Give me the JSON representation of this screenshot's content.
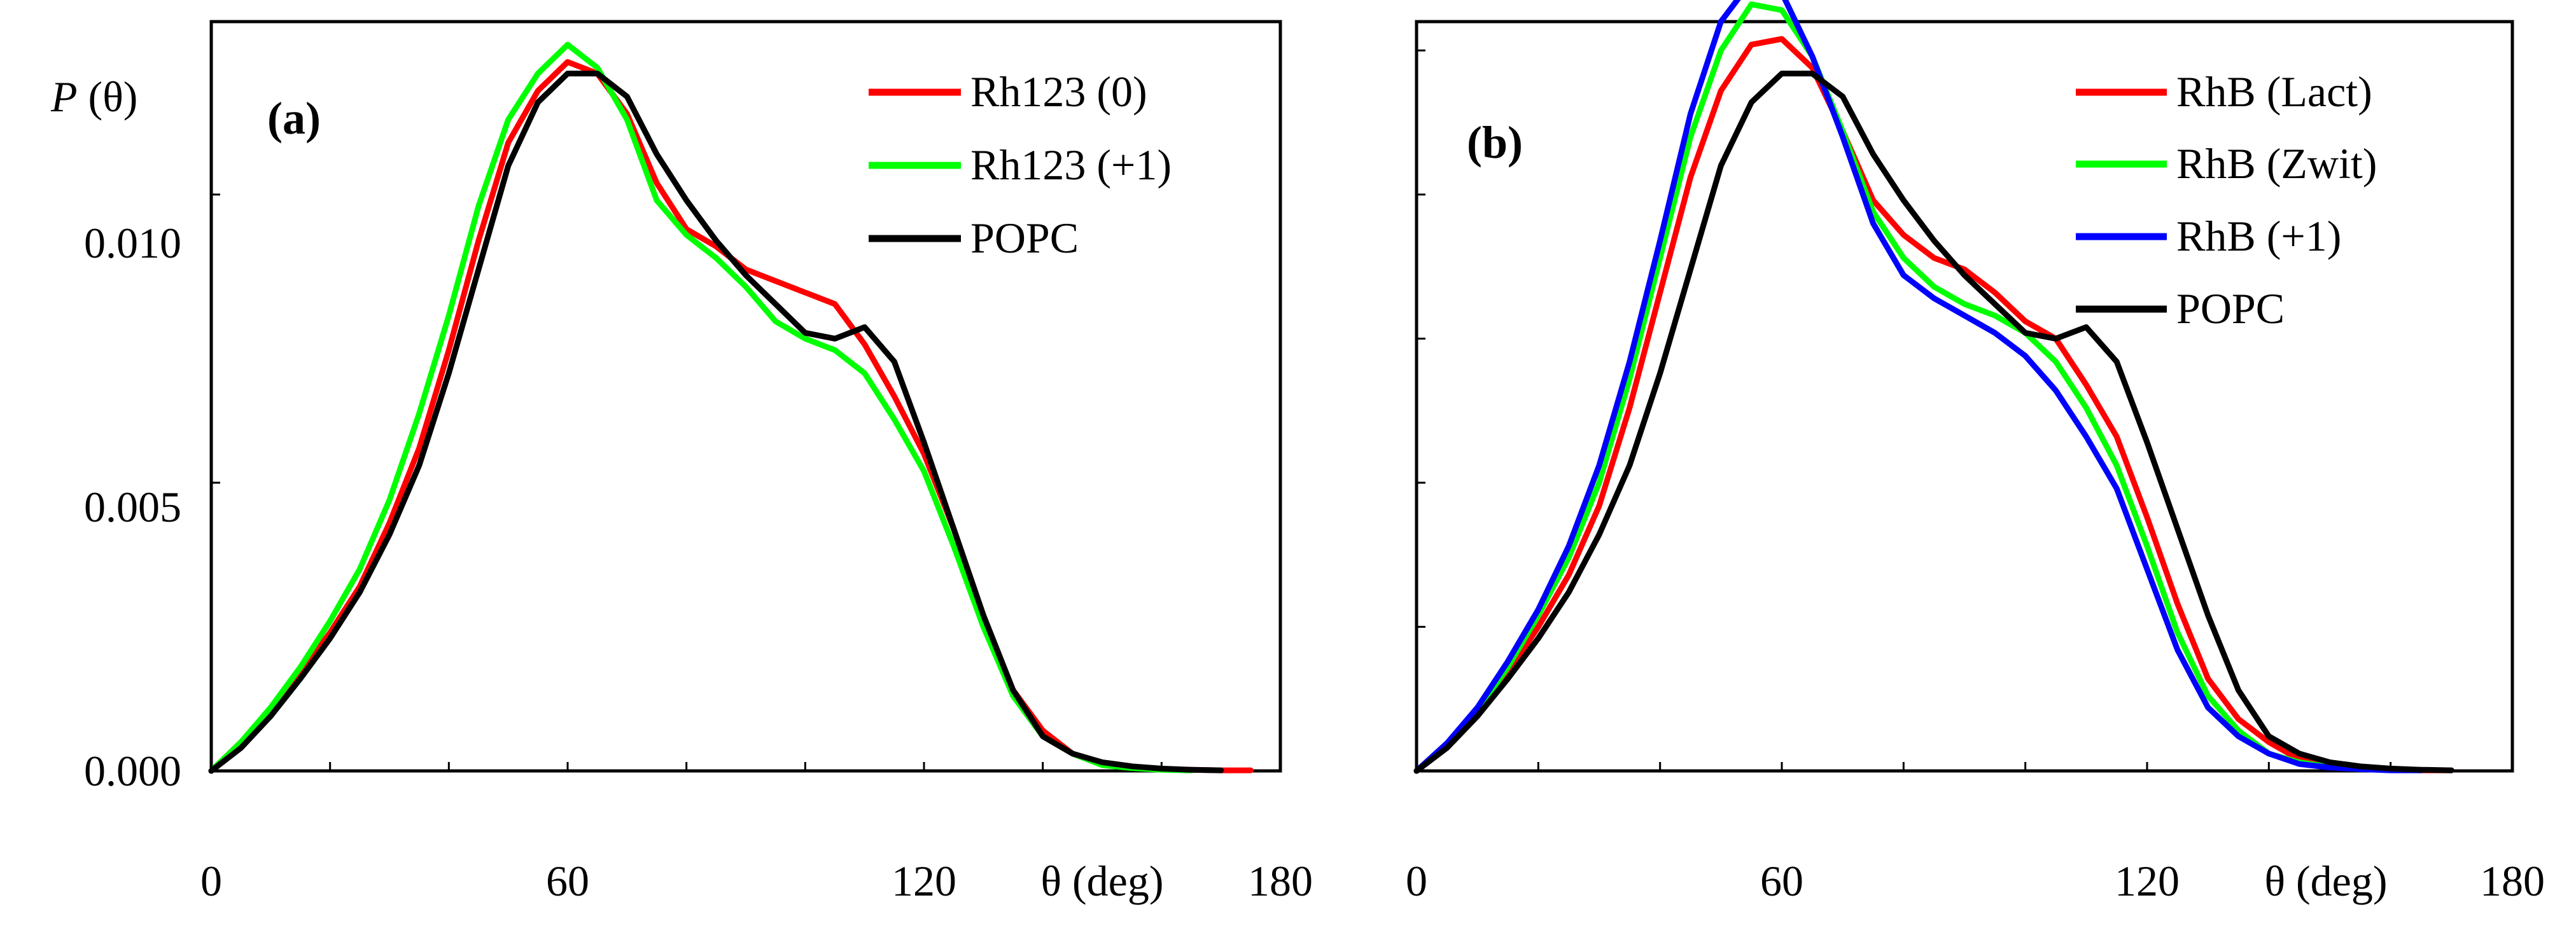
{
  "chart_data": [
    {
      "type": "line",
      "panel_label": "(a)",
      "ylabel_italic": "P",
      "ylabel_rest": " (θ)",
      "xlabel": "θ (deg)",
      "xlim": [
        0,
        180
      ],
      "ylim": [
        0,
        0.013
      ],
      "x_ticks": [
        0,
        60,
        120,
        180
      ],
      "x_tick_labels": [
        "0",
        "60",
        "120",
        "180"
      ],
      "y_ticks": [
        0.0,
        0.005,
        0.01
      ],
      "y_tick_labels": [
        "0.000",
        "0.005",
        "0.010"
      ],
      "legend_position": "top-right",
      "series": [
        {
          "name": "Rh123 (0)",
          "color": "#ff0000",
          "x": [
            0,
            5,
            10,
            15,
            20,
            25,
            30,
            35,
            40,
            45,
            50,
            55,
            60,
            65,
            70,
            75,
            80,
            85,
            90,
            95,
            100,
            105,
            110,
            115,
            120,
            125,
            130,
            135,
            140,
            145,
            150,
            155,
            160,
            165,
            170,
            175
          ],
          "y": [
            0,
            0.0005,
            0.00105,
            0.0017,
            0.0024,
            0.0032,
            0.0043,
            0.0056,
            0.0073,
            0.0092,
            0.0109,
            0.0118,
            0.0123,
            0.0121,
            0.0114,
            0.0102,
            0.0094,
            0.0091,
            0.0087,
            0.0085,
            0.0083,
            0.0081,
            0.0074,
            0.0065,
            0.0055,
            0.0042,
            0.0027,
            0.0014,
            0.0007,
            0.0003,
            0.00012,
            6e-05,
            3e-05,
            2e-05,
            1e-05,
            1e-05
          ]
        },
        {
          "name": "Rh123 (+1)",
          "color": "#00ff00",
          "x": [
            0,
            5,
            10,
            15,
            20,
            25,
            30,
            35,
            40,
            45,
            50,
            55,
            60,
            65,
            70,
            75,
            80,
            85,
            90,
            95,
            100,
            105,
            110,
            115,
            120,
            125,
            130,
            135,
            140,
            145,
            150,
            155,
            160,
            165
          ],
          "y": [
            0,
            0.0005,
            0.0011,
            0.0018,
            0.0026,
            0.0035,
            0.0047,
            0.0062,
            0.0079,
            0.0098,
            0.0113,
            0.0121,
            0.0126,
            0.0122,
            0.0113,
            0.0099,
            0.0093,
            0.0089,
            0.0084,
            0.0078,
            0.0075,
            0.0073,
            0.0069,
            0.0061,
            0.0052,
            0.0039,
            0.0025,
            0.0013,
            0.0006,
            0.0003,
            0.0001,
            5e-05,
            2e-05,
            1e-05
          ]
        },
        {
          "name": "POPC",
          "color": "#000000",
          "x": [
            0,
            5,
            10,
            15,
            20,
            25,
            30,
            35,
            40,
            45,
            50,
            55,
            60,
            65,
            70,
            75,
            80,
            85,
            90,
            95,
            100,
            105,
            110,
            115,
            120,
            125,
            130,
            135,
            140,
            145,
            150,
            155,
            160,
            165,
            170
          ],
          "y": [
            0,
            0.0004,
            0.00095,
            0.0016,
            0.0023,
            0.0031,
            0.0041,
            0.0053,
            0.0069,
            0.0087,
            0.0105,
            0.0116,
            0.0121,
            0.0121,
            0.0117,
            0.0107,
            0.0099,
            0.0092,
            0.0086,
            0.0081,
            0.0076,
            0.0075,
            0.0077,
            0.0071,
            0.0057,
            0.0042,
            0.0027,
            0.0014,
            0.0006,
            0.0003,
            0.00015,
            8e-05,
            4e-05,
            2e-05,
            1e-05
          ]
        }
      ]
    },
    {
      "type": "line",
      "panel_label": "(b)",
      "xlabel": "θ (deg)",
      "xlim": [
        0,
        180
      ],
      "ylim": [
        0,
        0.013
      ],
      "x_ticks": [
        0,
        60,
        120,
        180
      ],
      "x_tick_labels": [
        "0",
        "60",
        "120",
        "180"
      ],
      "y_ticks": [
        0.0,
        0.0025,
        0.005,
        0.0075,
        0.01,
        0.0125
      ],
      "legend_position": "top-right",
      "series": [
        {
          "name": "RhB (Lact)",
          "color": "#ff0000",
          "x": [
            0,
            5,
            10,
            15,
            20,
            25,
            30,
            35,
            40,
            45,
            50,
            55,
            60,
            65,
            70,
            75,
            80,
            85,
            90,
            95,
            100,
            105,
            110,
            115,
            120,
            125,
            130,
            135,
            140,
            145,
            150,
            155,
            160,
            165,
            170
          ],
          "y": [
            0,
            0.00045,
            0.001,
            0.0017,
            0.0025,
            0.0034,
            0.0046,
            0.0063,
            0.0083,
            0.0103,
            0.0118,
            0.0126,
            0.0127,
            0.0122,
            0.0111,
            0.0099,
            0.0093,
            0.0089,
            0.0087,
            0.0083,
            0.0078,
            0.0075,
            0.0067,
            0.0058,
            0.0044,
            0.0029,
            0.0016,
            0.0009,
            0.0005,
            0.0002,
            0.0001,
            5e-05,
            2e-05,
            1e-05,
            1e-05
          ]
        },
        {
          "name": "RhB (Zwit)",
          "color": "#00ff00",
          "x": [
            0,
            5,
            10,
            15,
            20,
            25,
            30,
            35,
            40,
            45,
            50,
            55,
            60,
            65,
            70,
            75,
            80,
            85,
            90,
            95,
            100,
            105,
            110,
            115,
            120,
            125,
            130,
            135,
            140,
            145,
            150,
            155,
            160,
            165
          ],
          "y": [
            0,
            0.00045,
            0.00105,
            0.0018,
            0.0027,
            0.0037,
            0.005,
            0.0068,
            0.0089,
            0.011,
            0.0125,
            0.0133,
            0.0132,
            0.0124,
            0.0111,
            0.0097,
            0.0089,
            0.0084,
            0.0081,
            0.0079,
            0.0076,
            0.0071,
            0.0063,
            0.0053,
            0.0039,
            0.0024,
            0.0013,
            0.0007,
            0.0003,
            0.00015,
            7e-05,
            3e-05,
            2e-05,
            1e-05
          ]
        },
        {
          "name": "RhB (+1)",
          "color": "#0000ff",
          "x": [
            0,
            5,
            10,
            15,
            20,
            25,
            30,
            35,
            40,
            45,
            50,
            55,
            60,
            65,
            70,
            75,
            80,
            85,
            90,
            95,
            100,
            105,
            110,
            115,
            120,
            125,
            130,
            135,
            140,
            145,
            150,
            155,
            160,
            165
          ],
          "y": [
            0,
            0.00048,
            0.0011,
            0.0019,
            0.0028,
            0.0039,
            0.0053,
            0.0071,
            0.0092,
            0.0114,
            0.013,
            0.0137,
            0.0135,
            0.0124,
            0.011,
            0.0095,
            0.0086,
            0.0082,
            0.0079,
            0.0076,
            0.0072,
            0.0066,
            0.0058,
            0.0049,
            0.0035,
            0.0021,
            0.0011,
            0.0006,
            0.0003,
            0.00012,
            6e-05,
            3e-05,
            1e-05,
            1e-05
          ]
        },
        {
          "name": "POPC",
          "color": "#000000",
          "x": [
            0,
            5,
            10,
            15,
            20,
            25,
            30,
            35,
            40,
            45,
            50,
            55,
            60,
            65,
            70,
            75,
            80,
            85,
            90,
            95,
            100,
            105,
            110,
            115,
            120,
            125,
            130,
            135,
            140,
            145,
            150,
            155,
            160,
            165,
            170
          ],
          "y": [
            0,
            0.0004,
            0.00095,
            0.0016,
            0.0023,
            0.0031,
            0.0041,
            0.0053,
            0.0069,
            0.0087,
            0.0105,
            0.0116,
            0.0121,
            0.0121,
            0.0117,
            0.0107,
            0.0099,
            0.0092,
            0.0086,
            0.0081,
            0.0076,
            0.0075,
            0.0077,
            0.0071,
            0.0057,
            0.0042,
            0.0027,
            0.0014,
            0.0006,
            0.0003,
            0.00015,
            8e-05,
            4e-05,
            2e-05,
            1e-05
          ]
        }
      ]
    }
  ]
}
